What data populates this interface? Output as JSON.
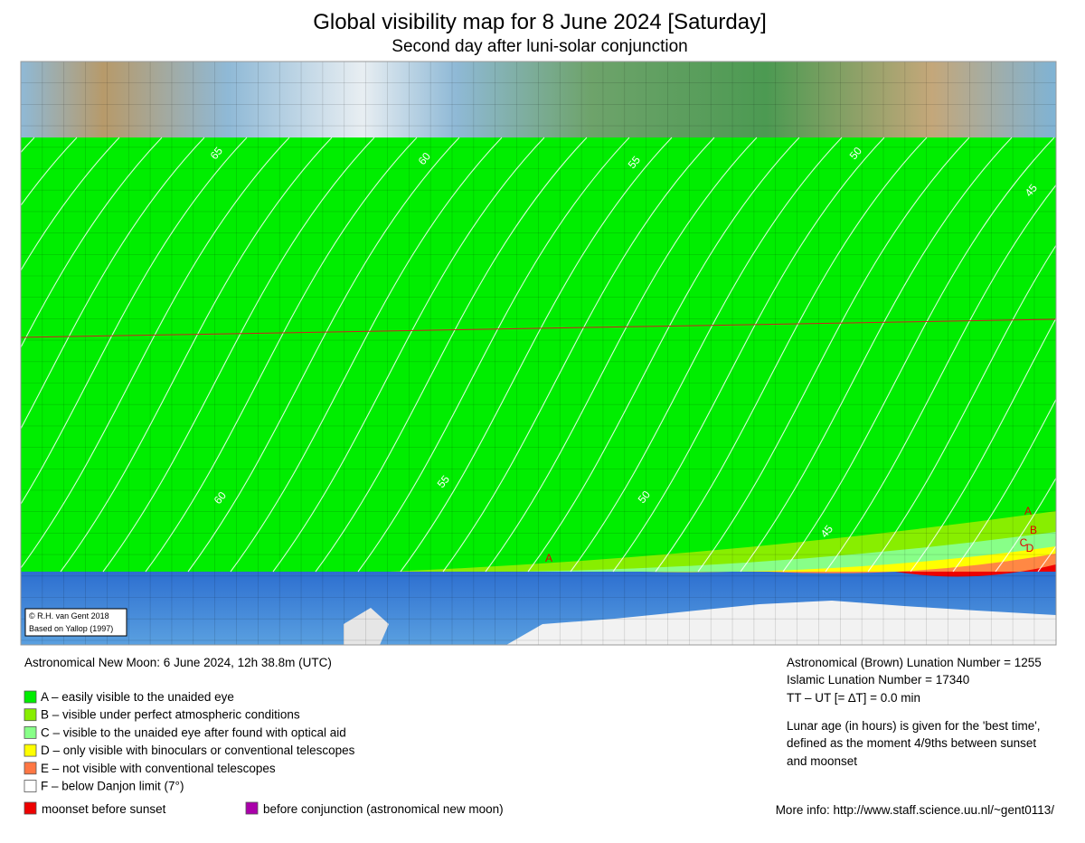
{
  "header": {
    "title": "Global visibility map for 8 June 2024 [Saturday]",
    "subtitle": "Second day after luni-solar conjunction"
  },
  "map": {
    "credits": [
      "© R.H. van Gent 2018",
      "Based on Yallop (1997)"
    ],
    "contour_labels_top": [
      65,
      60,
      55,
      50,
      45
    ],
    "contour_labels_bottom": [
      60,
      55,
      50,
      45
    ],
    "zone_labels": [
      "A",
      "A",
      "B",
      "C",
      "D"
    ]
  },
  "info": {
    "new_moon": "Astronomical New Moon: 6 June 2024, 12h 38.8m (UTC)",
    "right": [
      "Astronomical (Brown) Lunation Number = 1255",
      "Islamic Lunation Number = 17340",
      "TT – UT [= ∆T] = 0.0 min"
    ],
    "note": [
      "Lunar age (in hours) is given for the 'best time',",
      "defined as the moment 4/9ths between sunset",
      "and moonset"
    ]
  },
  "legend": {
    "items": [
      {
        "label": "A – easily visible to the unaided eye",
        "color": "#00ee00"
      },
      {
        "label": "B – visible under perfect atmospheric conditions",
        "color": "#88ee00"
      },
      {
        "label": "C – visible to the unaided eye after found with optical aid",
        "color": "#88ff88"
      },
      {
        "label": "D – only visible with binoculars or conventional telescopes",
        "color": "#ffff00"
      },
      {
        "label": "E – not visible with conventional telescopes",
        "color": "#ff7744"
      },
      {
        "label": "F – below Danjon limit (7°)",
        "color": "#ffffff"
      }
    ],
    "extra": [
      {
        "label": "moonset before sunset",
        "color": "#ee0000"
      },
      {
        "label": "before conjunction (astronomical new moon)",
        "color": "#aa00aa"
      }
    ]
  },
  "footer": "More info: http://www.staff.science.uu.nl/~gent0113/"
}
